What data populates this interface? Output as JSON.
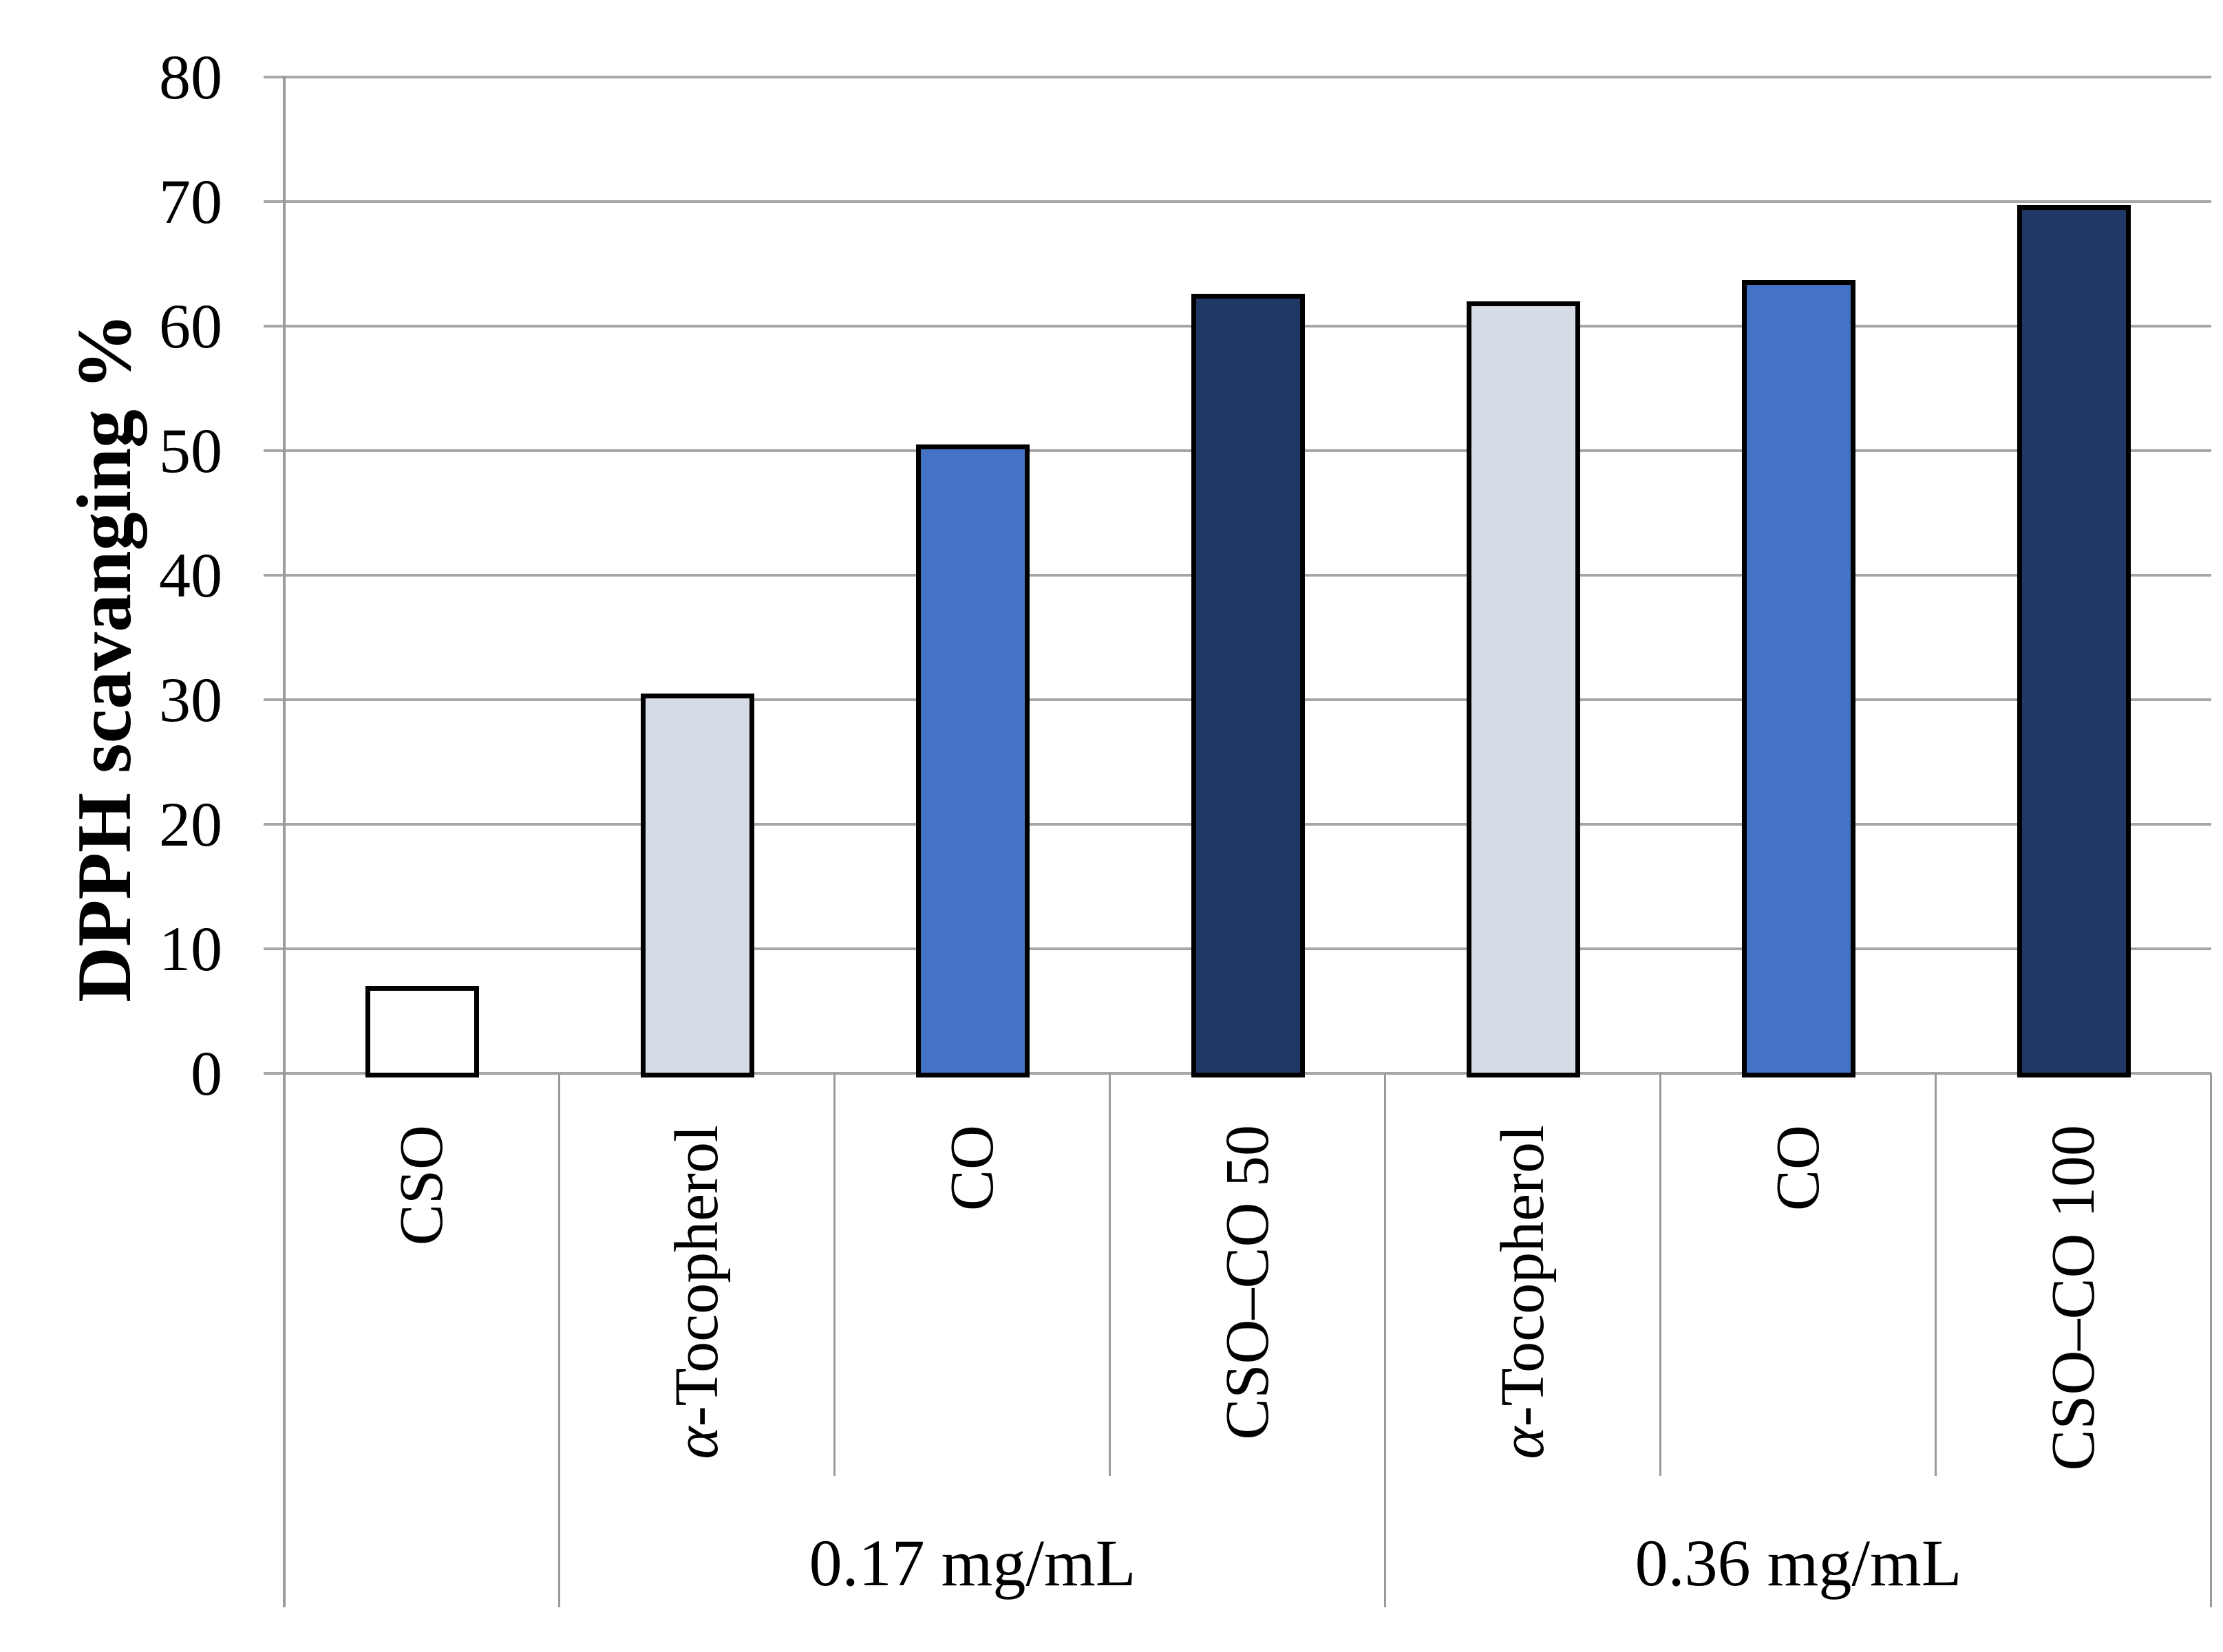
{
  "figure": {
    "background": "#ffffff",
    "text_color": "#000000"
  },
  "chart_data": {
    "type": "bar",
    "title": "",
    "xlabel": "",
    "ylabel": "DPPH scavanging %",
    "ylim": [
      0,
      80
    ],
    "yticks": [
      0,
      10,
      20,
      30,
      40,
      50,
      60,
      70,
      80
    ],
    "grid": "horizontal",
    "legend_position": "none",
    "gridline_color": "#a6a6a6",
    "axis_line_color": "#9a9a9a",
    "bar_border_color": "#000000",
    "categories": [
      "CSO",
      "α-Tocopherol",
      "CO",
      "CSO–CO 50",
      "α-Tocopherol",
      "CO",
      "CSO–CO 100"
    ],
    "values": [
      7,
      30.5,
      50.5,
      62.6,
      62,
      63.7,
      69.7
    ],
    "bar_colors": [
      "#ffffff",
      "#d6dce5",
      "#4472c4",
      "#1f3864",
      "#d6dce5",
      "#4472c4",
      "#1f3864"
    ],
    "groups": [
      {
        "label": "",
        "span": [
          0,
          1
        ]
      },
      {
        "label": "0.17 mg/mL",
        "span": [
          1,
          4
        ]
      },
      {
        "label": "0.36 mg/mL",
        "span": [
          4,
          7
        ]
      }
    ]
  }
}
